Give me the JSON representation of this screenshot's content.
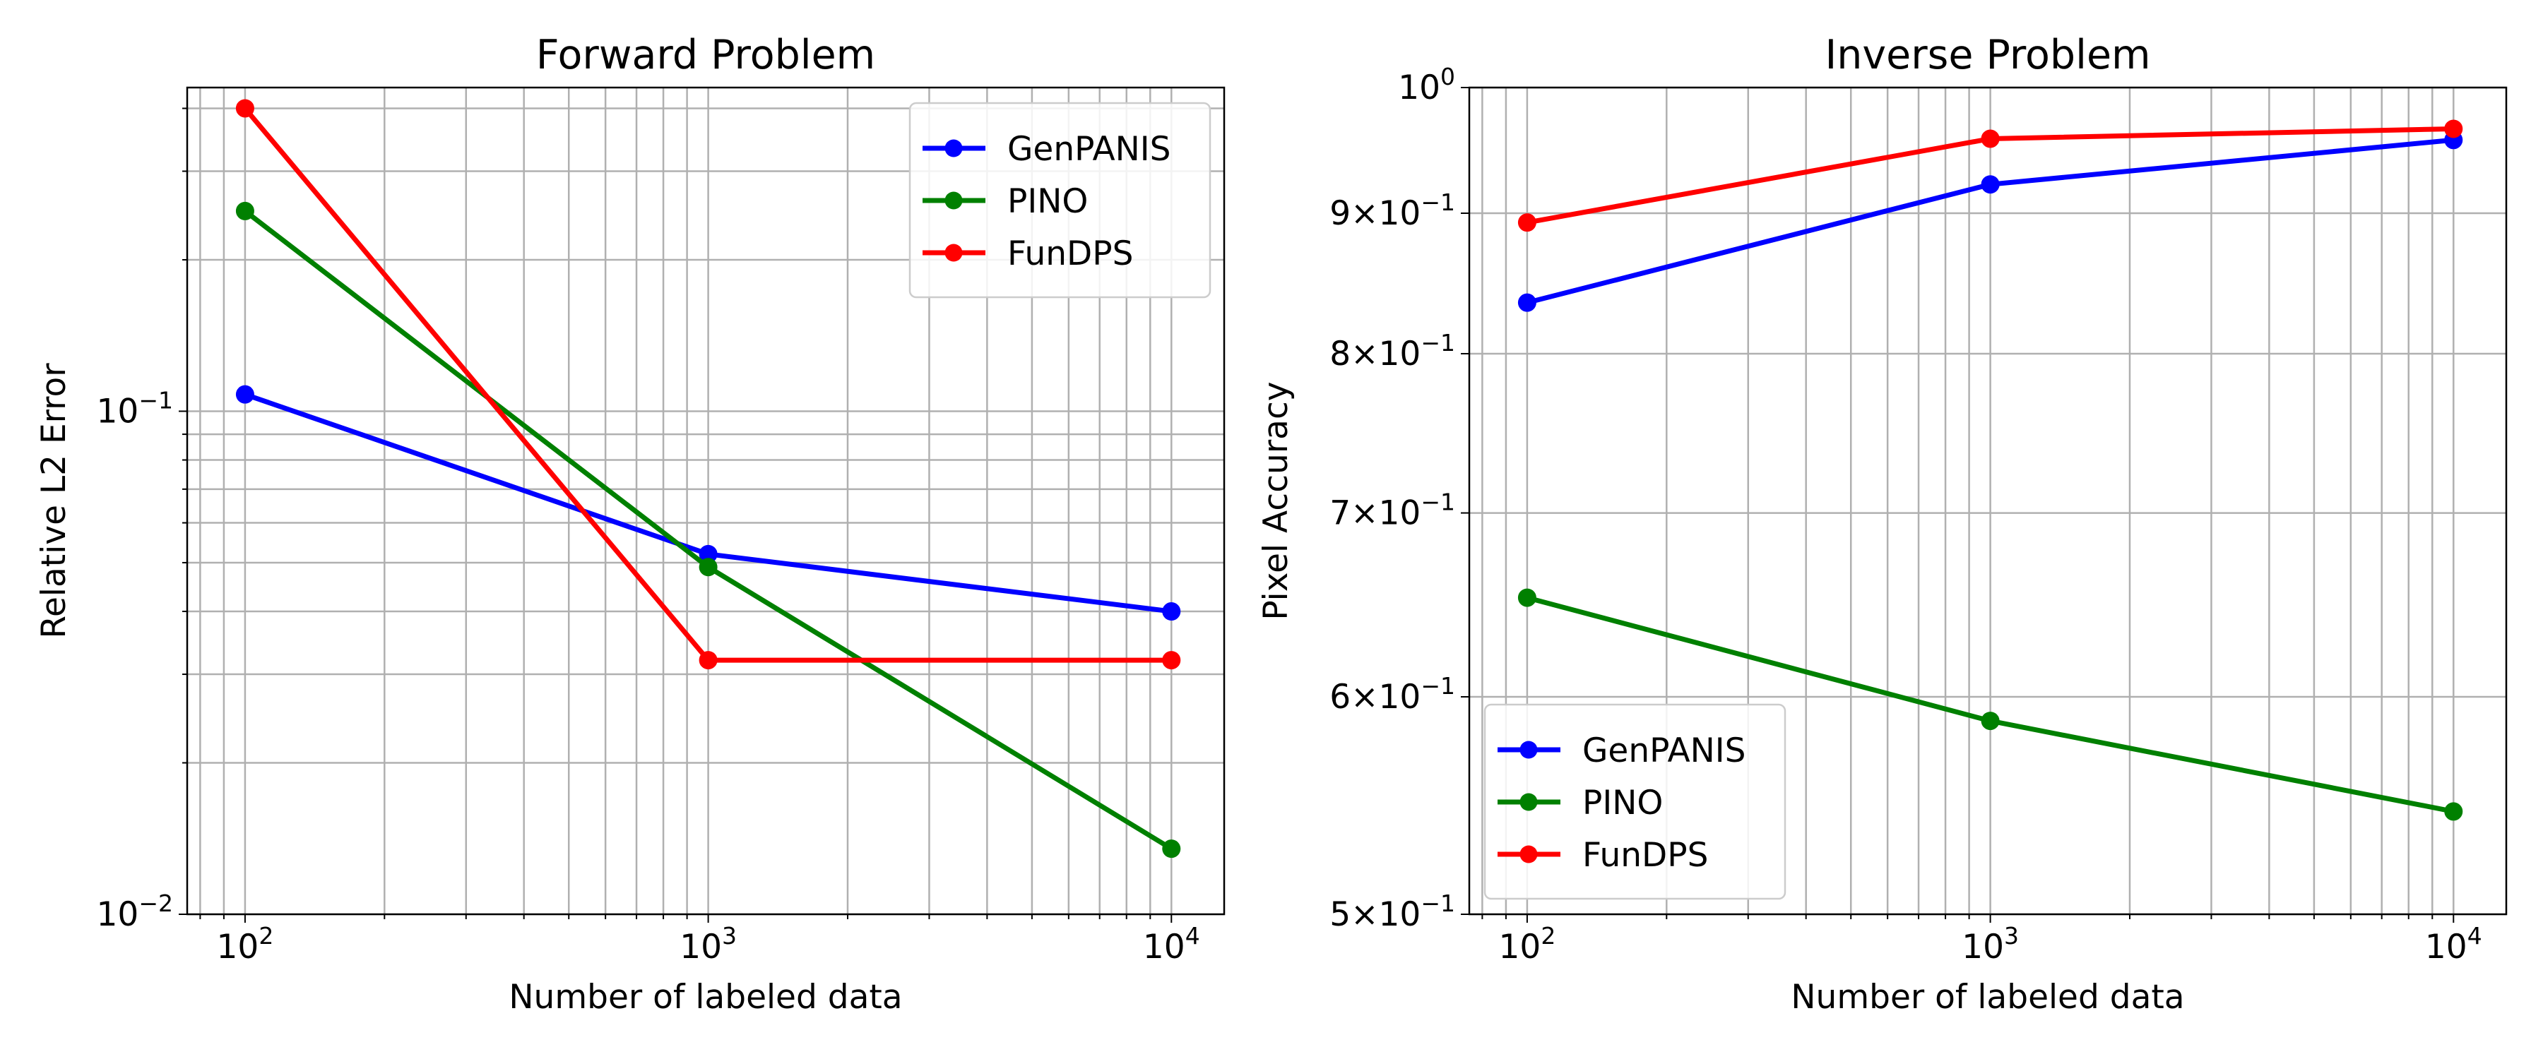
{
  "chart_data": [
    {
      "type": "line",
      "title": "Forward Problem",
      "xlabel": "Number of labeled data",
      "ylabel": "Relative L2 Error",
      "xscale": "log",
      "yscale": "log",
      "xlim": [
        75,
        13000
      ],
      "ylim": [
        0.01,
        0.44
      ],
      "grid": "both",
      "legend_position": "top-right",
      "x": [
        100,
        1000,
        10000
      ],
      "xticks": [
        {
          "value": 100,
          "base": "10",
          "exp": "2"
        },
        {
          "value": 1000,
          "base": "10",
          "exp": "3"
        },
        {
          "value": 10000,
          "base": "10",
          "exp": "4"
        }
      ],
      "yticks": [
        {
          "value": 0.01,
          "base": "10",
          "exp": "−2"
        },
        {
          "value": 0.1,
          "base": "10",
          "exp": "−1"
        }
      ],
      "series": [
        {
          "name": "GenPANIS",
          "color": "#0000ff",
          "values": [
            0.108,
            0.052,
            0.04
          ]
        },
        {
          "name": "PINO",
          "color": "#008000",
          "values": [
            0.25,
            0.049,
            0.0135
          ]
        },
        {
          "name": "FunDPS",
          "color": "#ff0000",
          "values": [
            0.4,
            0.032,
            0.032
          ]
        }
      ]
    },
    {
      "type": "line",
      "title": "Inverse Problem",
      "xlabel": "Number of labeled data",
      "ylabel": "Pixel Accuracy",
      "xscale": "log",
      "yscale": "log",
      "xlim": [
        75,
        13000
      ],
      "ylim": [
        0.5,
        1.0
      ],
      "grid": "both",
      "legend_position": "bottom-left",
      "x": [
        100,
        1000,
        10000
      ],
      "xticks": [
        {
          "value": 100,
          "base": "10",
          "exp": "2"
        },
        {
          "value": 1000,
          "base": "10",
          "exp": "3"
        },
        {
          "value": 10000,
          "base": "10",
          "exp": "4"
        }
      ],
      "yticks": [
        {
          "value": 0.5,
          "coef": "5",
          "base": "10",
          "exp": "−1"
        },
        {
          "value": 0.6,
          "coef": "6",
          "base": "10",
          "exp": "−1"
        },
        {
          "value": 0.7,
          "coef": "7",
          "base": "10",
          "exp": "−1"
        },
        {
          "value": 0.8,
          "coef": "8",
          "base": "10",
          "exp": "−1"
        },
        {
          "value": 0.9,
          "coef": "9",
          "base": "10",
          "exp": "−1"
        },
        {
          "value": 1.0,
          "base": "10",
          "exp": "0"
        }
      ],
      "series": [
        {
          "name": "GenPANIS",
          "color": "#0000ff",
          "values": [
            0.835,
            0.922,
            0.957
          ]
        },
        {
          "name": "PINO",
          "color": "#008000",
          "values": [
            0.652,
            0.588,
            0.545
          ]
        },
        {
          "name": "FunDPS",
          "color": "#ff0000",
          "values": [
            0.893,
            0.958,
            0.966
          ]
        }
      ]
    }
  ]
}
